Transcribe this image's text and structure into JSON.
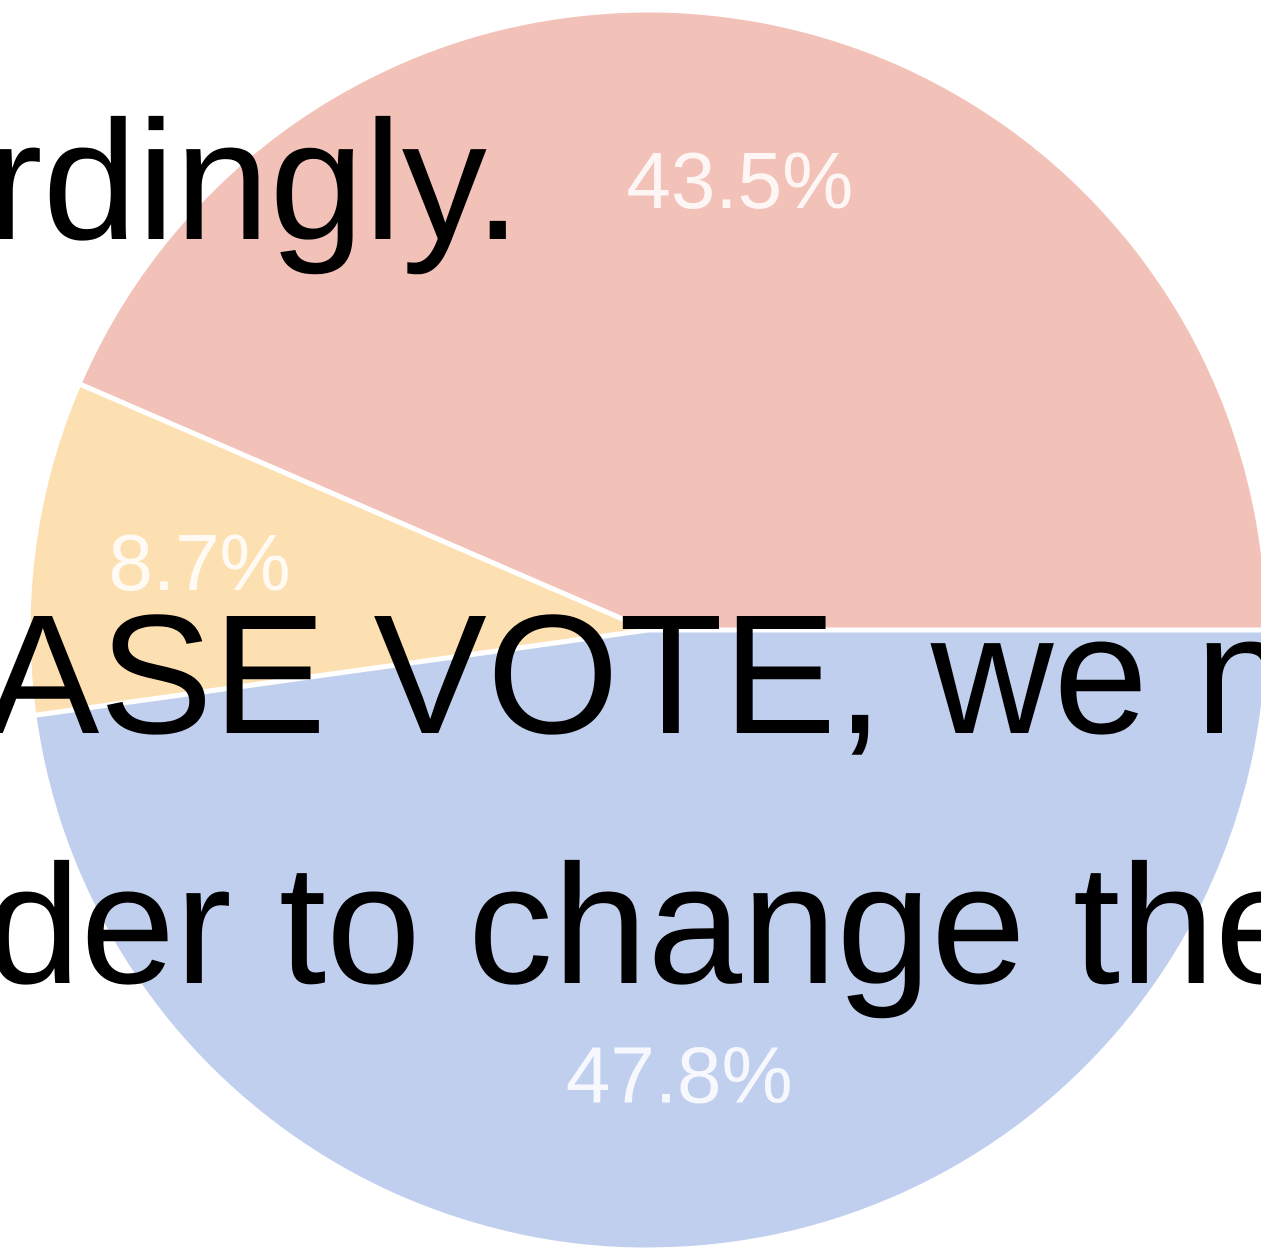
{
  "overlay_text": {
    "line1": "rdingly.",
    "line2": "ASE VOTE, we ne",
    "line3": "der to change the"
  },
  "chart_data": {
    "type": "pie",
    "slices": [
      {
        "label": "43.5%",
        "value": 43.5,
        "color": "#f2c2b8"
      },
      {
        "label": "8.7%",
        "value": 8.7,
        "color": "#fde0b2"
      },
      {
        "label": "47.8%",
        "value": 47.8,
        "color": "#c1cfee"
      }
    ],
    "slice_border_color": "#ffffff",
    "title": "",
    "legend": false
  }
}
